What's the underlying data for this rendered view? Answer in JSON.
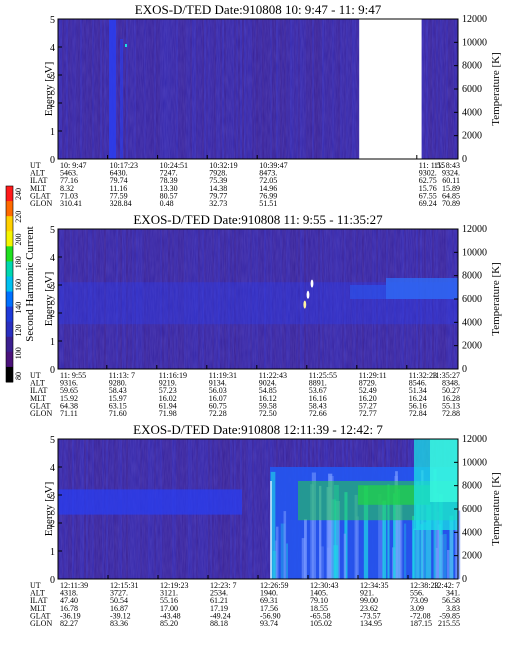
{
  "colors": {
    "background_low": "#3a1f8c",
    "mid_blue": "#2a3df0",
    "green": "#22d14a",
    "cyan": "#19e0e6",
    "frame": "#000000"
  },
  "colorbar": {
    "label": "Second Harmonic Current",
    "ticks": [
      "240",
      "220",
      "200",
      "180",
      "160",
      "140",
      "120",
      "100",
      "80"
    ],
    "colors": [
      "#ff1a1a",
      "#ff6a00",
      "#ffd000",
      "#f5f500",
      "#20e020",
      "#00d8b0",
      "#00c0f0",
      "#0070ff",
      "#1f3ad8",
      "#2a2fbf",
      "#3b1f8f",
      "#4a127a",
      "#000000"
    ]
  },
  "chart_data": [
    {
      "type": "heatmap",
      "title": "EXOS-D/TED   Date:910808  10: 9:47 - 11: 9:47",
      "ylabel": "Energy [eV]",
      "y2label": "Temperature [K]",
      "ylim": [
        0,
        5
      ],
      "y_ticks": [
        "0",
        "1",
        "2",
        "3",
        "4",
        "5"
      ],
      "y2lim": [
        0,
        12000
      ],
      "y2_ticks": [
        "0",
        "2000",
        "4000",
        "6000",
        "8000",
        "10000",
        "12000"
      ],
      "data_gap": [
        0.753,
        0.909
      ],
      "ephemeris": {
        "row_labels": [
          "UT",
          "ALT",
          "ILAT",
          "MLT",
          "GLAT",
          "GLON"
        ],
        "columns": [
          {
            "pos": 0.0,
            "values": [
              "10: 9:47",
              "5463.",
              "77.16",
              "8.32",
              "71.03",
              "310.41"
            ]
          },
          {
            "pos": 0.124,
            "values": [
              "10:17:23",
              "6430.",
              "79.74",
              "11.16",
              "77.59",
              "328.84"
            ]
          },
          {
            "pos": 0.249,
            "values": [
              "10:24:51",
              "7247.",
              "78.39",
              "13.30",
              "80.57",
              "0.48"
            ]
          },
          {
            "pos": 0.373,
            "values": [
              "10:32:19",
              "7928.",
              "75.39",
              "14.38",
              "79.77",
              "32.73"
            ]
          },
          {
            "pos": 0.498,
            "values": [
              "10:39:47",
              "8473.",
              "72.05",
              "14.96",
              "76.99",
              "51.51"
            ]
          },
          {
            "pos": 0.897,
            "values": [
              "11: 1:55",
              "9302.",
              "62.75",
              "15.76",
              "67.55",
              "69.24"
            ]
          },
          {
            "pos": 1.0,
            "values": [
              "11: 8:43",
              "9324.",
              "60.11",
              "15.89",
              "64.85",
              "70.89"
            ]
          }
        ]
      }
    },
    {
      "type": "heatmap",
      "title": "EXOS-D/TED   Date:910808  11: 9:55 - 11:35:27",
      "ylabel": "Energy [eV]",
      "y2label": "Temperature [K]",
      "ylim": [
        0,
        5
      ],
      "y_ticks": [
        "0",
        "1",
        "2",
        "3",
        "4",
        "5"
      ],
      "y2lim": [
        0,
        12000
      ],
      "y2_ticks": [
        "0",
        "2000",
        "4000",
        "6000",
        "8000",
        "10000",
        "12000"
      ],
      "ephemeris": {
        "row_labels": [
          "UT",
          "ALT",
          "ILAT",
          "MLT",
          "GLAT",
          "GLON"
        ],
        "columns": [
          {
            "pos": 0.0,
            "values": [
              "11: 9:55",
              "9316.",
              "59.65",
              "15.92",
              "64.38",
              "71.11"
            ]
          },
          {
            "pos": 0.122,
            "values": [
              "11:13: 7",
              "9280.",
              "58.43",
              "15.97",
              "63.15",
              "71.60"
            ]
          },
          {
            "pos": 0.247,
            "values": [
              "11:16:19",
              "9219.",
              "57.23",
              "16.02",
              "61.94",
              "71.98"
            ]
          },
          {
            "pos": 0.372,
            "values": [
              "11:19:31",
              "9134.",
              "56.03",
              "16.07",
              "60.75",
              "72.28"
            ]
          },
          {
            "pos": 0.497,
            "values": [
              "11:22:43",
              "9024.",
              "54.85",
              "16.12",
              "59.58",
              "72.50"
            ]
          },
          {
            "pos": 0.622,
            "values": [
              "11:25:55",
              "8891.",
              "53.67",
              "16.16",
              "58.43",
              "72.66"
            ]
          },
          {
            "pos": 0.747,
            "values": [
              "11:29:11",
              "8729.",
              "52.49",
              "16.20",
              "57.27",
              "72.77"
            ]
          },
          {
            "pos": 0.872,
            "values": [
              "11:32:23",
              "8546.",
              "51.34",
              "16.24",
              "56.16",
              "72.84"
            ]
          },
          {
            "pos": 1.0,
            "values": [
              "11:35:27",
              "8348.",
              "50.27",
              "16.28",
              "55.13",
              "72.88"
            ]
          }
        ]
      }
    },
    {
      "type": "heatmap",
      "title": "EXOS-D/TED   Date:910808  12:11:39 - 12:42: 7",
      "ylabel": "Energy [eV]",
      "y2label": "Temperature [K]",
      "ylim": [
        0,
        5
      ],
      "y_ticks": [
        "0",
        "1",
        "2",
        "3",
        "4",
        "5"
      ],
      "y2lim": [
        0,
        12000
      ],
      "y2_ticks": [
        "0",
        "2000",
        "4000",
        "6000",
        "8000",
        "10000",
        "12000"
      ],
      "ephemeris": {
        "row_labels": [
          "UT",
          "ALT",
          "ILAT",
          "MLT",
          "GLAT",
          "GLON"
        ],
        "columns": [
          {
            "pos": 0.0,
            "values": [
              "12:11:39",
              "4318.",
              "47.40",
              "16.78",
              "-36.19",
              "82.27"
            ]
          },
          {
            "pos": 0.125,
            "values": [
              "12:15:31",
              "3727.",
              "50.54",
              "16.87",
              "-39.12",
              "83.36"
            ]
          },
          {
            "pos": 0.25,
            "values": [
              "12:19:23",
              "3121.",
              "55.16",
              "17.00",
              "-43.48",
              "85.20"
            ]
          },
          {
            "pos": 0.375,
            "values": [
              "12:23: 7",
              "2534.",
              "61.21",
              "17.19",
              "-49.24",
              "88.18"
            ]
          },
          {
            "pos": 0.5,
            "values": [
              "12:26:59",
              "1940.",
              "69.31",
              "17.56",
              "-56.90",
              "93.74"
            ]
          },
          {
            "pos": 0.625,
            "values": [
              "12:30:43",
              "1405.",
              "79.10",
              "18.55",
              "-65.58",
              "105.02"
            ]
          },
          {
            "pos": 0.75,
            "values": [
              "12:34:35",
              "921.",
              "99.00",
              "23.62",
              "-73.57",
              "134.95"
            ]
          },
          {
            "pos": 0.875,
            "values": [
              "12:38:23",
              "556.",
              "73.09",
              "3.09",
              "-72.08",
              "187.15"
            ]
          },
          {
            "pos": 1.0,
            "values": [
              "12:42: 7",
              "341.",
              "56.58",
              "3.83",
              "-59.85",
              "215.55"
            ]
          }
        ]
      }
    }
  ]
}
